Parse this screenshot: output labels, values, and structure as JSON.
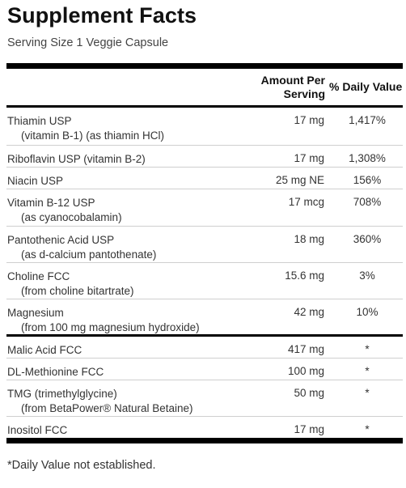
{
  "title": "Supplement Facts",
  "serving": "Serving Size 1 Veggie Capsule",
  "headers": {
    "amount_line1": "Amount Per",
    "amount_line2": "Serving",
    "dv": "% Daily Value"
  },
  "rows": [
    {
      "name": "Thiamin USP",
      "sub": "(vitamin B-1) (as thiamin HCl)",
      "amount": "17 mg",
      "dv": "1,417%"
    },
    {
      "name": "Riboflavin USP (vitamin B-2)",
      "sub": "",
      "amount": "17 mg",
      "dv": "1,308%"
    },
    {
      "name": "Niacin USP",
      "sub": "",
      "amount": "25 mg NE",
      "dv": "156%"
    },
    {
      "name": "Vitamin B-12 USP",
      "sub": "(as cyanocobalamin)",
      "amount": "17 mcg",
      "dv": "708%"
    },
    {
      "name": "Pantothenic Acid USP",
      "sub": "(as d-calcium pantothenate)",
      "amount": "18 mg",
      "dv": "360%"
    },
    {
      "name": "Choline FCC",
      "sub": "(from choline bitartrate)",
      "amount": "15.6 mg",
      "dv": "3%"
    },
    {
      "name": "Magnesium",
      "sub": "(from 100 mg magnesium hydroxide)",
      "amount": "42 mg",
      "dv": "10%"
    },
    {
      "name": "Malic Acid FCC",
      "sub": "",
      "amount": "417 mg",
      "dv": "*"
    },
    {
      "name": "DL-Methionine FCC",
      "sub": "",
      "amount": "100 mg",
      "dv": "*"
    },
    {
      "name": "TMG (trimethylglycine)",
      "sub": "(from BetaPower® Natural Betaine)",
      "amount": "50 mg",
      "dv": "*"
    },
    {
      "name": "Inositol FCC",
      "sub": "",
      "amount": "17 mg",
      "dv": "*"
    }
  ],
  "footnote": "*Daily Value not established."
}
